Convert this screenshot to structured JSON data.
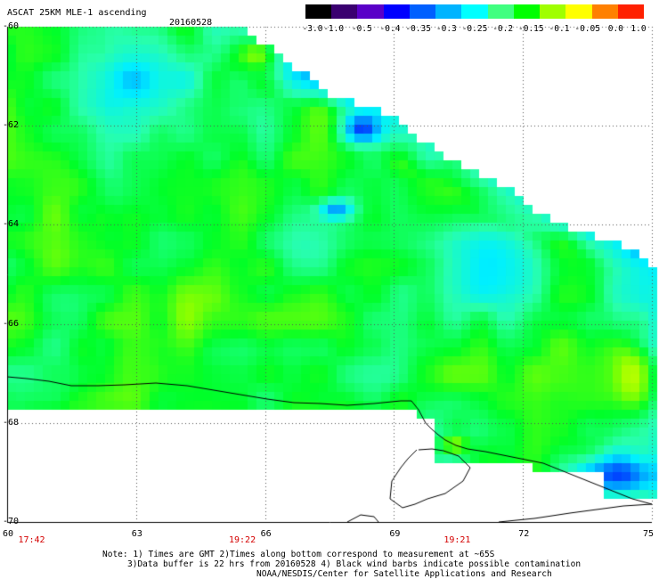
{
  "header": {
    "title": "ASCAT 25KM MLE-1 ascending",
    "date": "20160528"
  },
  "colorbar": {
    "colors": [
      "#000000",
      "#3a0070",
      "#5a00c8",
      "#0000ff",
      "#0060ff",
      "#00b4ff",
      "#00ffff",
      "#40ff80",
      "#00ff00",
      "#a0ff00",
      "#ffff00",
      "#ff8000",
      "#ff2000"
    ],
    "tick_labels": [
      "-3.0",
      "-1.0",
      "-0.5",
      "-0.4",
      "-0.35",
      "-0.3",
      "-0.25",
      "-0.2",
      "-0.15",
      "-0.1",
      "-0.05",
      "0.0",
      "1.0"
    ]
  },
  "axes": {
    "y_labels": [
      "-60",
      "-62",
      "-64",
      "-66",
      "-68",
      "-70"
    ],
    "y_values": [
      -60,
      -62,
      -64,
      -66,
      -68,
      -70
    ],
    "x_labels": [
      "60",
      "63",
      "66",
      "69",
      "72",
      "75"
    ],
    "x_values": [
      60,
      63,
      66,
      69,
      72,
      75
    ],
    "lat_range": [
      -70,
      -60
    ],
    "lon_range": [
      60,
      75
    ]
  },
  "times": [
    {
      "label": "17:42",
      "lon": 60.3
    },
    {
      "label": "19:22",
      "lon": 65.2
    },
    {
      "label": "19:21",
      "lon": 70.2
    }
  ],
  "notes": {
    "line1": "Note: 1) Times are GMT 2)Times along bottom correspond to measurement at ~65S",
    "line2": "3)Data buffer is 22 hrs from 20160528 4) Black wind barbs indicate possible contamination",
    "line3": "NOAA/NESDIS/Center for Satellite Applications and Research"
  }
}
